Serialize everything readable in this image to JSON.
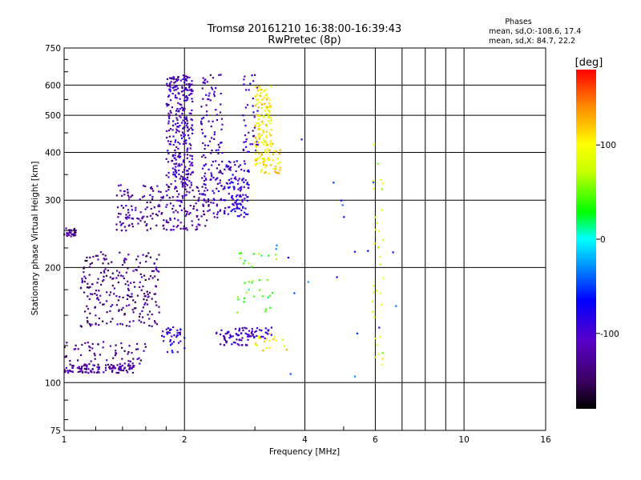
{
  "chart_data": {
    "type": "scatter",
    "title": "Tromsø 20161210 16:38:00-16:39:43",
    "subtitle": "RwPretec (8p)",
    "xlabel": "Frequency [MHz]",
    "ylabel": "Stationary phase Virtual Height [km]",
    "x_scale": "log",
    "y_scale": "log",
    "xlim": [
      1,
      16
    ],
    "ylim": [
      75,
      750
    ],
    "x_ticks": [
      1,
      2,
      4,
      6,
      10,
      16
    ],
    "x_tick_labels": [
      "1",
      "2",
      "4",
      "6",
      "10",
      "16"
    ],
    "x_gridlines": [
      2,
      4,
      6,
      7,
      8,
      9,
      10
    ],
    "y_ticks": [
      75,
      100,
      200,
      300,
      400,
      500,
      600,
      750
    ],
    "y_tick_labels": [
      "75",
      "100",
      "200",
      "300",
      "400",
      "500",
      "600",
      "750"
    ],
    "grid": true,
    "legend": {
      "title": "Phases",
      "lines": [
        "mean, sd,O:-108.6, 17.4",
        "mean, sd,X: 84.7, 22.2"
      ],
      "placement": "top-right"
    },
    "colorbar": {
      "label": "[deg]",
      "range": [
        -180,
        180
      ],
      "ticks": [
        100,
        0,
        -100
      ],
      "tick_labels": [
        "100",
        "0",
        "-100"
      ],
      "colormap": "rainbow (black-purple-blue-cyan-green-yellow-orange-red)"
    },
    "clusters": [
      {
        "f": [
          1.0,
          1.07
        ],
        "h": [
          240,
          255
        ],
        "phase": -130,
        "n": 30
      },
      {
        "f": [
          1.0,
          1.5
        ],
        "h": [
          106,
          112
        ],
        "phase": -125,
        "n": 120
      },
      {
        "f": [
          1.0,
          1.6
        ],
        "h": [
          112,
          128
        ],
        "phase": -130,
        "n": 60
      },
      {
        "f": [
          1.1,
          1.75
        ],
        "h": [
          140,
          220
        ],
        "phase": -130,
        "n": 240
      },
      {
        "f": [
          1.75,
          2.0
        ],
        "h": [
          120,
          140
        ],
        "phase": -90,
        "n": 40
      },
      {
        "f": [
          1.35,
          2.3
        ],
        "h": [
          250,
          330
        ],
        "phase": -120,
        "n": 220
      },
      {
        "f": [
          1.8,
          2.1
        ],
        "h": [
          330,
          640
        ],
        "phase": -110,
        "n": 300
      },
      {
        "f": [
          2.2,
          2.5
        ],
        "h": [
          270,
          640
        ],
        "phase": -110,
        "n": 140
      },
      {
        "f": [
          2.5,
          2.9
        ],
        "h": [
          270,
          380
        ],
        "phase": -95,
        "n": 120
      },
      {
        "f": [
          2.8,
          3.05
        ],
        "h": [
          400,
          640
        ],
        "phase": -100,
        "n": 40
      },
      {
        "f": [
          2.4,
          2.9
        ],
        "h": [
          125,
          140
        ],
        "phase": -110,
        "n": 60
      },
      {
        "f": [
          2.9,
          3.3
        ],
        "h": [
          130,
          140
        ],
        "phase": -100,
        "n": 30
      },
      {
        "f": [
          3.0,
          3.3
        ],
        "h": [
          370,
          600
        ],
        "phase": 105,
        "n": 130
      },
      {
        "f": [
          3.0,
          3.5
        ],
        "h": [
          350,
          430
        ],
        "phase": 110,
        "n": 40
      },
      {
        "f": [
          3.0,
          3.6
        ],
        "h": [
          120,
          135
        ],
        "phase": 100,
        "n": 20
      },
      {
        "f": [
          2.7,
          3.4
        ],
        "h": [
          150,
          220
        ],
        "phase": 40,
        "n": 35
      },
      {
        "f": [
          5.9,
          6.3
        ],
        "h": [
          110,
          460
        ],
        "phase": 80,
        "n": 35
      },
      {
        "f": [
          3.3,
          7.3
        ],
        "h": [
          100,
          460
        ],
        "phase": -60,
        "n": 20
      }
    ]
  }
}
